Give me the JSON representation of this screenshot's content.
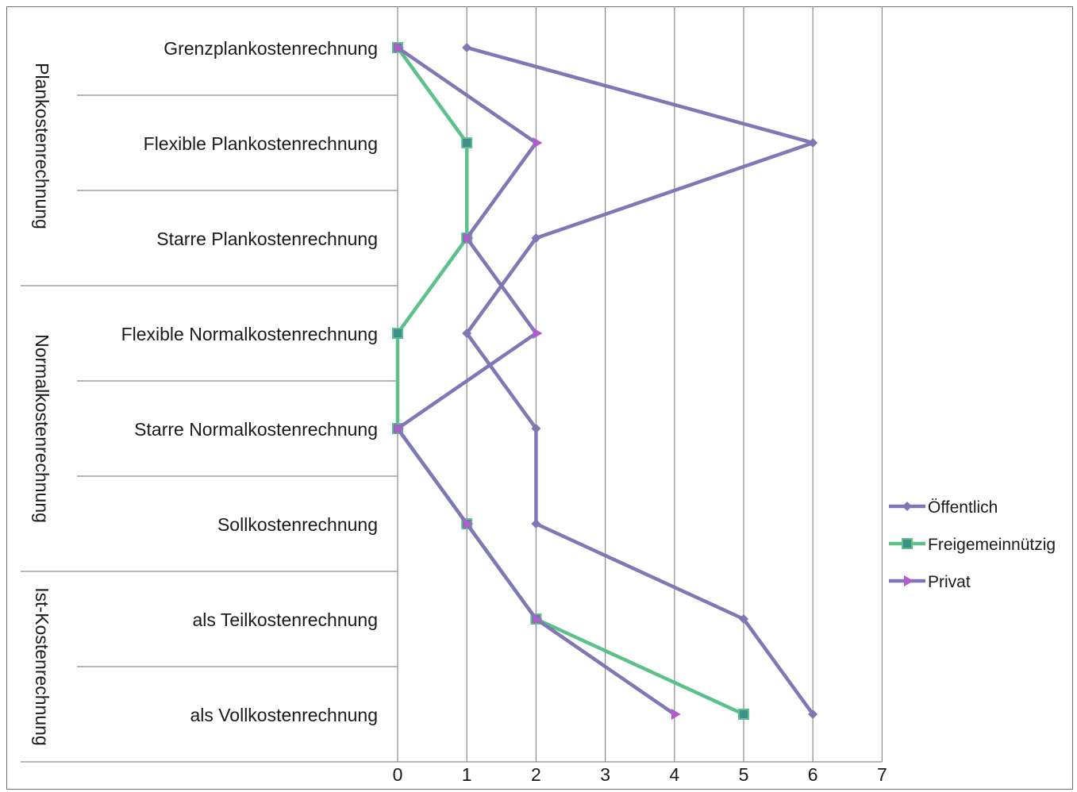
{
  "chart_data": {
    "type": "line",
    "orientation": "horizontal",
    "title": "",
    "xlabel": "",
    "ylabel": "",
    "xlim": [
      0,
      7
    ],
    "x_ticks": [
      "0",
      "1",
      "2",
      "3",
      "4",
      "5",
      "6",
      "7"
    ],
    "grid": "vertical",
    "legend_position": "right",
    "categories": [
      "Grenzplankostenrechnung",
      "Flexible Plankostenrechnung",
      "Starre Plankostenrechnung",
      "Flexible Normalkostenrechnung",
      "Starre Normalkostenrechnung",
      "Sollkostenrechnung",
      "als Teilkostenrechnung",
      "als Vollkostenrechnung"
    ],
    "groups": [
      {
        "label": "Plankostenrechnung",
        "start": 0,
        "count": 3
      },
      {
        "label": "Normalkostenrechnung",
        "start": 3,
        "count": 3
      },
      {
        "label": "Ist-Kostenrechnung",
        "start": 6,
        "count": 2
      }
    ],
    "series": [
      {
        "name": "Öffentlich",
        "color": "#7f78b4",
        "marker": "diamond",
        "values": [
          1,
          6,
          2,
          1,
          2,
          2,
          5,
          6
        ]
      },
      {
        "name": "Freigemeinnützig",
        "color": "#5cc08a",
        "marker": "square",
        "values": [
          0,
          1,
          1,
          0,
          0,
          1,
          2,
          5
        ]
      },
      {
        "name": "Privat",
        "color": "#7f78b4",
        "marker": "triangle",
        "marker_color": "#b05ccc",
        "values": [
          0,
          2,
          1,
          2,
          0,
          1,
          2,
          4
        ]
      }
    ]
  }
}
